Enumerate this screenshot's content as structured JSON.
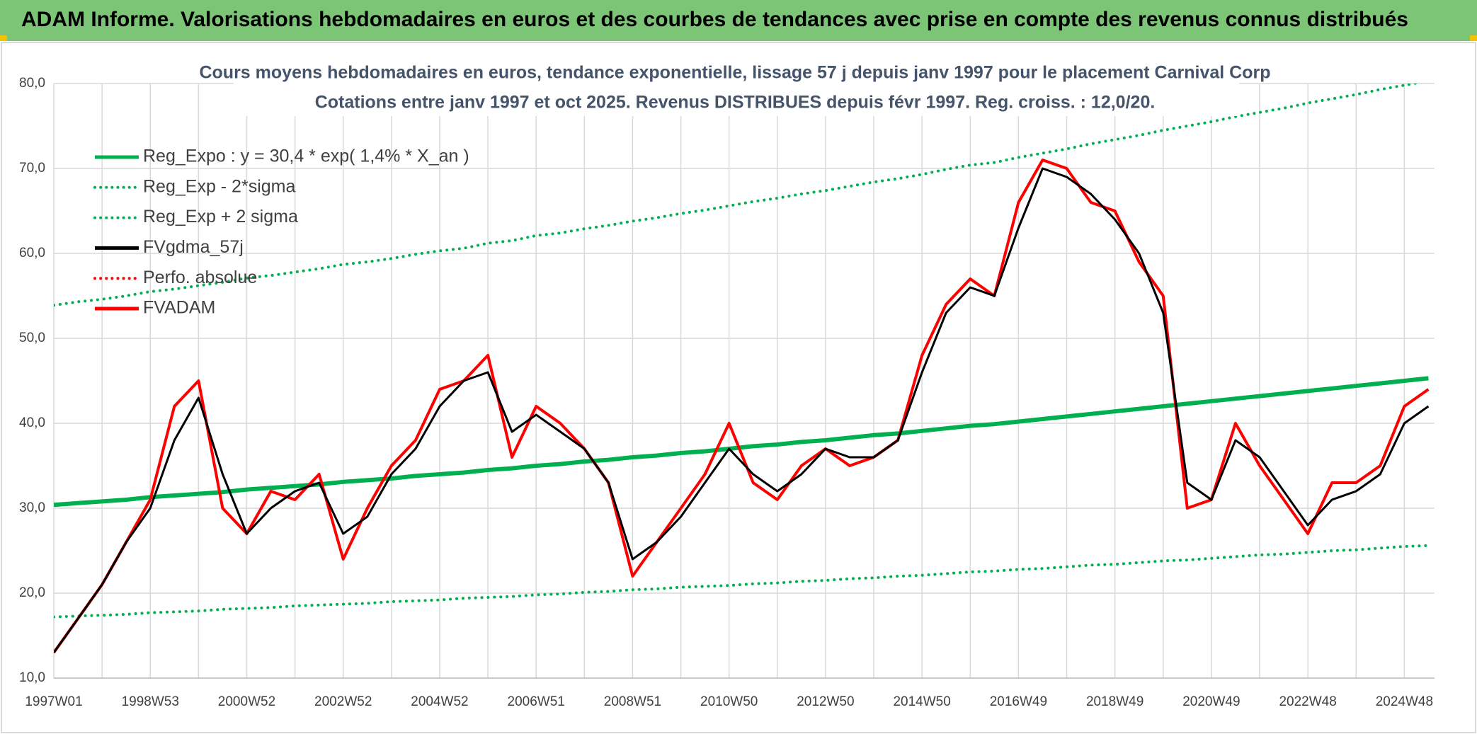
{
  "header": {
    "title": "ADAM Informe. Valorisations hebdomadaires en euros et des courbes de tendances avec prise en compte des revenus connus distribués"
  },
  "chart_data": {
    "type": "line",
    "title": "Cours moyens hebdomadaires en euros, tendance exponentielle, lissage 57 j depuis janv 1997 pour le placement Carnival Corp",
    "subtitle": "Cotations entre janv 1997 et oct 2025. Revenus DISTRIBUES depuis févr 1997. Reg. croiss. : 12,0/20.",
    "categories": [
      "1997W01",
      null,
      null,
      null,
      "1998W53",
      null,
      null,
      null,
      "2000W52",
      null,
      null,
      null,
      "2002W52",
      null,
      null,
      null,
      "2004W52",
      null,
      null,
      null,
      "2006W51",
      null,
      null,
      null,
      "2008W51",
      null,
      null,
      null,
      "2010W50",
      null,
      null,
      null,
      "2012W50",
      null,
      null,
      null,
      "2014W50",
      null,
      null,
      null,
      "2016W49",
      null,
      null,
      null,
      "2018W49",
      null,
      null,
      null,
      "2020W49",
      null,
      null,
      null,
      "2022W48",
      null,
      null,
      null,
      "2024W48",
      null
    ],
    "ylim": [
      10,
      80
    ],
    "yticks": [
      {
        "value": 10,
        "label": "10,0"
      },
      {
        "value": 20,
        "label": "20,0"
      },
      {
        "value": 30,
        "label": "30,0"
      },
      {
        "value": 40,
        "label": "40,0"
      },
      {
        "value": 50,
        "label": "50,0"
      },
      {
        "value": 60,
        "label": "60,0"
      },
      {
        "value": 70,
        "label": "70,0"
      },
      {
        "value": 80,
        "label": "80,0"
      }
    ],
    "grid": true,
    "series": [
      {
        "name": "Reg_Expo : y = 30,4 * exp( 1,4% *  X_an )",
        "color": "#00b050",
        "style": "solid",
        "width": 6,
        "values": [
          30.4,
          30.6,
          30.8,
          31.0,
          31.3,
          31.5,
          31.7,
          31.9,
          32.2,
          32.4,
          32.6,
          32.8,
          33.1,
          33.3,
          33.5,
          33.8,
          34.0,
          34.2,
          34.5,
          34.7,
          35.0,
          35.2,
          35.5,
          35.7,
          36.0,
          36.2,
          36.5,
          36.7,
          37.0,
          37.3,
          37.5,
          37.8,
          38.0,
          38.3,
          38.6,
          38.8,
          39.1,
          39.4,
          39.7,
          39.9,
          40.2,
          40.5,
          40.8,
          41.1,
          41.4,
          41.7,
          42.0,
          42.3,
          42.6,
          42.9,
          43.2,
          43.5,
          43.8,
          44.1,
          44.4,
          44.7,
          45.0,
          45.3
        ]
      },
      {
        "name": "Reg_Exp - 2*sigma",
        "color": "#00b050",
        "style": "dotted",
        "width": 4,
        "values": [
          17.2,
          17.3,
          17.4,
          17.5,
          17.7,
          17.8,
          17.9,
          18.1,
          18.2,
          18.3,
          18.5,
          18.6,
          18.7,
          18.8,
          19.0,
          19.1,
          19.2,
          19.4,
          19.5,
          19.6,
          19.8,
          19.9,
          20.1,
          20.2,
          20.4,
          20.5,
          20.7,
          20.8,
          20.9,
          21.1,
          21.2,
          21.4,
          21.5,
          21.7,
          21.8,
          22.0,
          22.1,
          22.3,
          22.5,
          22.6,
          22.8,
          22.9,
          23.1,
          23.3,
          23.4,
          23.6,
          23.8,
          23.9,
          24.1,
          24.3,
          24.5,
          24.6,
          24.8,
          25.0,
          25.1,
          25.3,
          25.5,
          25.6
        ]
      },
      {
        "name": "Reg_Exp + 2 sigma",
        "color": "#00b050",
        "style": "dotted",
        "width": 4,
        "values": [
          53.9,
          54.3,
          54.6,
          55.0,
          55.5,
          55.8,
          56.2,
          56.6,
          57.1,
          57.4,
          57.8,
          58.2,
          58.7,
          59.0,
          59.4,
          59.9,
          60.3,
          60.6,
          61.2,
          61.5,
          62.1,
          62.4,
          62.9,
          63.3,
          63.8,
          64.2,
          64.7,
          65.1,
          65.6,
          66.1,
          66.5,
          67.0,
          67.4,
          67.9,
          68.4,
          68.8,
          69.3,
          69.9,
          70.4,
          70.7,
          71.3,
          71.8,
          72.3,
          72.9,
          73.4,
          73.9,
          74.5,
          75.0,
          75.5,
          76.1,
          76.6,
          77.1,
          77.7,
          78.2,
          78.7,
          79.3,
          79.8,
          80.3
        ]
      },
      {
        "name": "FVgdma_57j",
        "color": "#000000",
        "style": "solid",
        "width": 3,
        "values": [
          13,
          17,
          21,
          26,
          30,
          38,
          43,
          34,
          27,
          30,
          32,
          33,
          27,
          29,
          34,
          37,
          42,
          45,
          46,
          39,
          41,
          39,
          37,
          33,
          24,
          26,
          29,
          33,
          37,
          34,
          32,
          34,
          37,
          36,
          36,
          38,
          46,
          53,
          56,
          55,
          63,
          70,
          69,
          67,
          64,
          60,
          53,
          33,
          31,
          38,
          36,
          32,
          28,
          31,
          32,
          34,
          40,
          42
        ]
      },
      {
        "name": "Perfo. absolue",
        "color": "#ff0000",
        "style": "dotted",
        "width": 3
      },
      {
        "name": "FVADAM",
        "color": "#ff0000",
        "style": "solid",
        "width": 4,
        "values": [
          13,
          17,
          21,
          26,
          31,
          42,
          45,
          30,
          27,
          32,
          31,
          34,
          24,
          30,
          35,
          38,
          44,
          45,
          48,
          36,
          42,
          40,
          37,
          33,
          22,
          26,
          30,
          34,
          40,
          33,
          31,
          35,
          37,
          35,
          36,
          38,
          48,
          54,
          57,
          55,
          66,
          71,
          70,
          66,
          65,
          59,
          55,
          30,
          31,
          40,
          35,
          31,
          27,
          33,
          33,
          35,
          42,
          44
        ]
      }
    ],
    "draw_order": [
      0,
      1,
      2,
      5,
      3
    ]
  }
}
